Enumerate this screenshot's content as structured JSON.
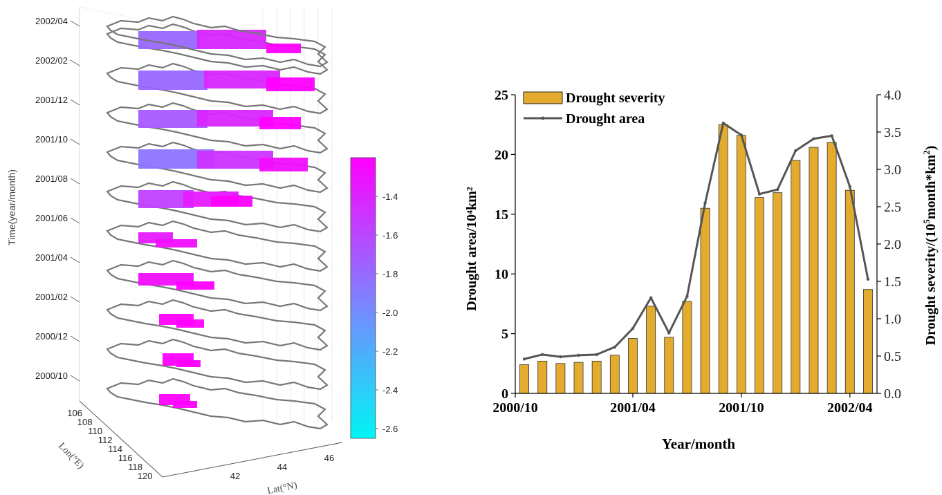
{
  "left_panel": {
    "time_axis_label": "Time(year/month)",
    "lon_axis_label": "Lon(°E)",
    "lat_axis_label": "Lat(°N)",
    "time_ticks": [
      "2000/10",
      "2000/12",
      "2001/02",
      "2001/04",
      "2001/06",
      "2001/08",
      "2001/10",
      "2001/12",
      "2002/02",
      "2002/04"
    ],
    "lon_ticks": [
      "106",
      "108",
      "110",
      "112",
      "114",
      "116",
      "118",
      "120"
    ],
    "lat_ticks": [
      "42",
      "44",
      "46"
    ],
    "colorbar": {
      "ticks": [
        "-1.4",
        "-1.6",
        "-1.8",
        "-2.0",
        "-2.2",
        "-2.4",
        "-2.6"
      ],
      "range": [
        -2.65,
        -1.2
      ],
      "color_low": "#00f5f5",
      "color_mid": "#8080ff",
      "color_high": "#ff00ff"
    },
    "outline_color": "#777777"
  },
  "chart_data": {
    "type": "bar",
    "x_labels_shown": [
      "2000/10",
      "2001/04",
      "2001/10",
      "2002/04"
    ],
    "xlabel": "Year/month",
    "ylabel_left": "Drought area/10⁴km²",
    "ylabel_right_main": "Drought severity/(10",
    "ylabel_right_sup1": "5",
    "ylabel_right_mid": "month*km",
    "ylabel_right_sup2": "2",
    "ylabel_right_end": ")",
    "left_ylim": [
      0,
      25
    ],
    "left_ticks": [
      "0",
      "5",
      "10",
      "15",
      "20",
      "25"
    ],
    "right_ylim": [
      0,
      4.0
    ],
    "right_ticks": [
      "0.0",
      "0.5",
      "1.0",
      "1.5",
      "2.0",
      "2.5",
      "3.0",
      "3.5",
      "4.0"
    ],
    "legend": [
      "Drought severity",
      "Drought area"
    ],
    "bar_color": "#e3ac2f",
    "line_color": "#555555",
    "bar_values": [
      2.4,
      2.7,
      2.5,
      2.6,
      2.7,
      3.2,
      4.6,
      7.3,
      4.7,
      7.7,
      15.5,
      22.5,
      21.6,
      16.4,
      16.8,
      19.5,
      20.6,
      21.0,
      17.0,
      8.7
    ],
    "line_values": [
      0.46,
      0.52,
      0.49,
      0.51,
      0.52,
      0.62,
      0.87,
      1.28,
      0.81,
      1.3,
      2.55,
      3.62,
      3.46,
      2.67,
      2.73,
      3.25,
      3.41,
      3.45,
      2.77,
      1.53
    ]
  }
}
